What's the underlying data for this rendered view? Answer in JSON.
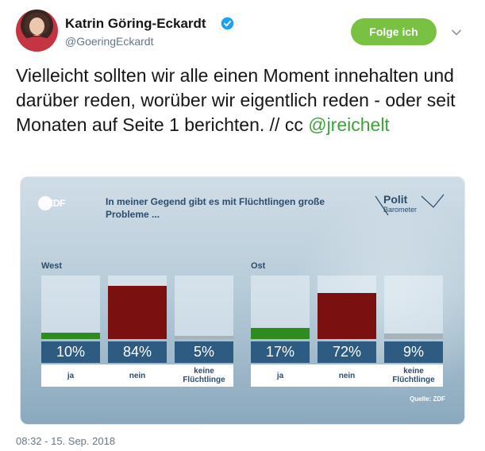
{
  "author": {
    "display_name": "Katrin Göring-Eckardt",
    "handle": "@GoeringEckardt",
    "verified": true
  },
  "follow_button": {
    "label": "Folge ich"
  },
  "tweet": {
    "text": "Vielleicht sollten wir alle einen Moment innehalten und darüber reden, worüber wir eigentlich reden - oder seit Monaten auf Seite 1 berichten. // cc ",
    "mention": "@jreichelt"
  },
  "media": {
    "broadcaster": "ZDF",
    "question": "In meiner Gegend gibt es mit Flüchtlingen große Probleme ...",
    "logo_line1": "Polit",
    "logo_line2": "Barometer",
    "source": "Quelle: ZDF",
    "regions": [
      {
        "name": "West",
        "answers": [
          {
            "label": "ja",
            "value_text": "10%",
            "value": 10,
            "color": "#2e8b1e"
          },
          {
            "label": "nein",
            "value_text": "84%",
            "value": 84,
            "color": "#7a1010"
          },
          {
            "label": "keine\nFlüchtlinge",
            "value_text": "5%",
            "value": 5,
            "color": "#a7b3bb"
          }
        ]
      },
      {
        "name": "Ost",
        "answers": [
          {
            "label": "ja",
            "value_text": "17%",
            "value": 17,
            "color": "#2e8b1e"
          },
          {
            "label": "nein",
            "value_text": "72%",
            "value": 72,
            "color": "#7a1010"
          },
          {
            "label": "keine\nFlüchtlinge",
            "value_text": "9%",
            "value": 9,
            "color": "#a7b3bb"
          }
        ]
      }
    ]
  },
  "timestamp": "08:32 - 15. Sep. 2018",
  "colors": {
    "follow_green": "#79c142",
    "mention_green": "#3ba339",
    "verified_blue": "#1da1f2"
  }
}
